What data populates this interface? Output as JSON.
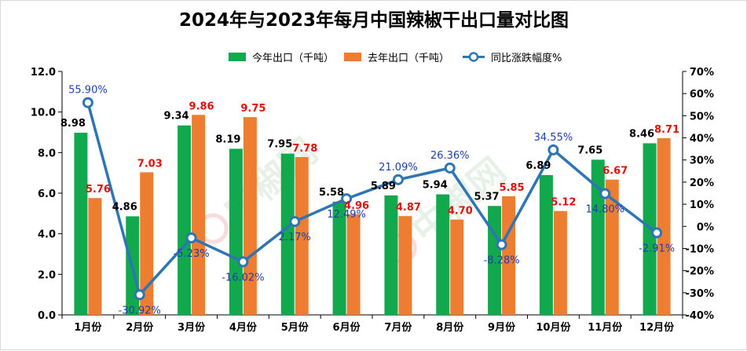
{
  "chart_data": {
    "type": "bar",
    "title": "2024年与2023年每月中国辣椒干出口量对比图",
    "categories": [
      "1月份",
      "2月份",
      "3月份",
      "4月份",
      "5月份",
      "6月份",
      "7月份",
      "8月份",
      "9月份",
      "10月份",
      "11月份",
      "12月份"
    ],
    "series": [
      {
        "name": "今年出口（千吨）",
        "type": "bar",
        "color": "#12a84d",
        "axis": "left",
        "values": [
          8.98,
          4.86,
          9.34,
          8.19,
          7.95,
          5.58,
          5.89,
          5.94,
          5.37,
          6.89,
          7.65,
          8.46
        ],
        "labels": [
          "8.98",
          "4.86",
          "9.34",
          "8.19",
          "7.95",
          "5.58",
          "5.89",
          "5.94",
          "5.37",
          "6.89",
          "7.65",
          "8.46"
        ]
      },
      {
        "name": "去年出口（千吨）",
        "type": "bar",
        "color": "#ed7d31",
        "axis": "left",
        "values": [
          5.76,
          7.03,
          9.86,
          9.75,
          7.78,
          4.96,
          4.87,
          4.7,
          5.85,
          5.12,
          6.67,
          8.71
        ],
        "labels": [
          "5.76",
          "7.03",
          "9.86",
          "9.75",
          "7.78",
          "4.96",
          "4.87",
          "4.70",
          "5.85",
          "5.12",
          "6.67",
          "8.71"
        ]
      },
      {
        "name": "同比涨跌幅度%",
        "type": "line",
        "color": "#2e75b6",
        "axis": "right",
        "values": [
          55.9,
          -30.92,
          -5.23,
          -16.02,
          2.17,
          12.49,
          21.09,
          26.36,
          -8.28,
          34.55,
          14.8,
          -2.91
        ],
        "labels": [
          "55.90%",
          "-30.92%",
          "-5.23%",
          "-16.02%",
          "2.17%",
          "12.49%",
          "21.09%",
          "26.36%",
          "-8.28%",
          "34.55%",
          "14.80%",
          "-2.91%"
        ]
      }
    ],
    "y_left": {
      "min": 0,
      "max": 12,
      "step": 2,
      "ticks": [
        "0.0",
        "2.0",
        "4.0",
        "6.0",
        "8.0",
        "10.0",
        "12.0"
      ]
    },
    "y_right": {
      "min": -40,
      "max": 70,
      "step": 10,
      "ticks": [
        "-40%",
        "-30%",
        "-20%",
        "-10%",
        "0%",
        "10%",
        "20%",
        "30%",
        "40%",
        "50%",
        "60%",
        "70%"
      ]
    },
    "legend_position": "top",
    "grid": false
  },
  "watermark": {
    "text": "中椒网",
    "color": "#e8f1e8"
  }
}
